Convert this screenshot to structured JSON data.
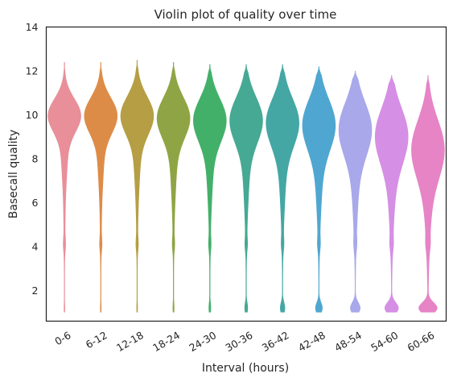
{
  "chart_data": {
    "type": "violin",
    "title": "Violin plot of quality over time",
    "xlabel": "Interval (hours)",
    "ylabel": "Basecall quality",
    "ylim": [
      0.6,
      14
    ],
    "yticks": [
      2,
      4,
      6,
      8,
      10,
      12,
      14
    ],
    "grid": false,
    "legend": "none",
    "categories": [
      "0-6",
      "6-12",
      "12-18",
      "18-24",
      "24-30",
      "30-36",
      "36-42",
      "42-48",
      "48-54",
      "54-60",
      "60-66"
    ],
    "colors": [
      "#e88f9a",
      "#dd8c48",
      "#b59e44",
      "#8fa545",
      "#43b06a",
      "#46a993",
      "#44a7a4",
      "#4fa7d1",
      "#a8a8ea",
      "#d58fe4",
      "#e684c6"
    ],
    "series": [
      {
        "category": "0-6",
        "min": 1.0,
        "max": 12.4,
        "median": 10.0
      },
      {
        "category": "6-12",
        "min": 1.0,
        "max": 12.4,
        "median": 10.0
      },
      {
        "category": "12-18",
        "min": 1.0,
        "max": 12.5,
        "median": 10.0
      },
      {
        "category": "18-24",
        "min": 1.0,
        "max": 12.4,
        "median": 9.9
      },
      {
        "category": "24-30",
        "min": 1.0,
        "max": 12.3,
        "median": 9.8
      },
      {
        "category": "30-36",
        "min": 1.0,
        "max": 12.3,
        "median": 9.8
      },
      {
        "category": "36-42",
        "min": 1.0,
        "max": 12.3,
        "median": 9.7
      },
      {
        "category": "42-48",
        "min": 1.0,
        "max": 12.2,
        "median": 9.6
      },
      {
        "category": "48-54",
        "min": 1.0,
        "max": 12.0,
        "median": 9.4
      },
      {
        "category": "54-60",
        "min": 1.0,
        "max": 11.8,
        "median": 9.1
      },
      {
        "category": "60-66",
        "min": 1.0,
        "max": 11.8,
        "median": 8.5
      }
    ]
  }
}
